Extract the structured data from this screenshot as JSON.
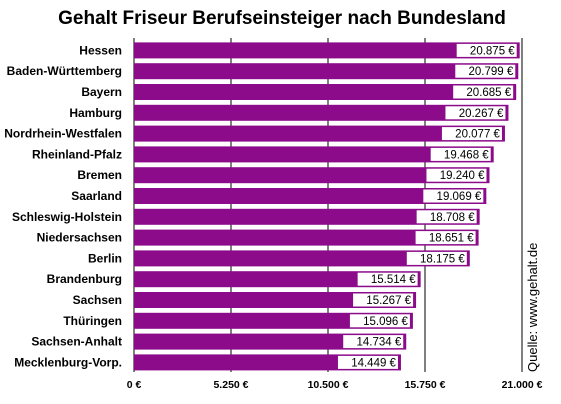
{
  "chart_data": {
    "type": "bar",
    "orientation": "horizontal",
    "title": "Gehalt Friseur Berufseinsteiger nach Bundesland",
    "source": "Quelle: www.gehalt.de",
    "categories": [
      "Hessen",
      "Baden-Württemberg",
      "Bayern",
      "Hamburg",
      "Nordrhein-Westfalen",
      "Rheinland-Pfalz",
      "Bremen",
      "Saarland",
      "Schleswig-Holstein",
      "Niedersachsen",
      "Berlin",
      "Brandenburg",
      "Sachsen",
      "Thüringen",
      "Sachsen-Anhalt",
      "Mecklenburg-Vorp."
    ],
    "values": [
      20875,
      20799,
      20685,
      20267,
      20077,
      19468,
      19240,
      19069,
      18708,
      18651,
      18175,
      15514,
      15267,
      15096,
      14734,
      14449
    ],
    "value_labels": [
      "20.875 €",
      "20.799 €",
      "20.685 €",
      "20.267 €",
      "20.077 €",
      "19.468 €",
      "19.240 €",
      "19.069 €",
      "18.708 €",
      "18.651 €",
      "18.175 €",
      "15.514 €",
      "15.267 €",
      "15.096 €",
      "14.734 €",
      "14.449 €"
    ],
    "xlim": [
      0,
      21000
    ],
    "xticks": [
      0,
      5250,
      10500,
      15750,
      21000
    ],
    "xtick_labels": [
      "0 €",
      "5.250 €",
      "10.500 €",
      "15.750 €",
      "21.000 €"
    ],
    "grid": true,
    "bar_color": "#8b0b8b"
  }
}
